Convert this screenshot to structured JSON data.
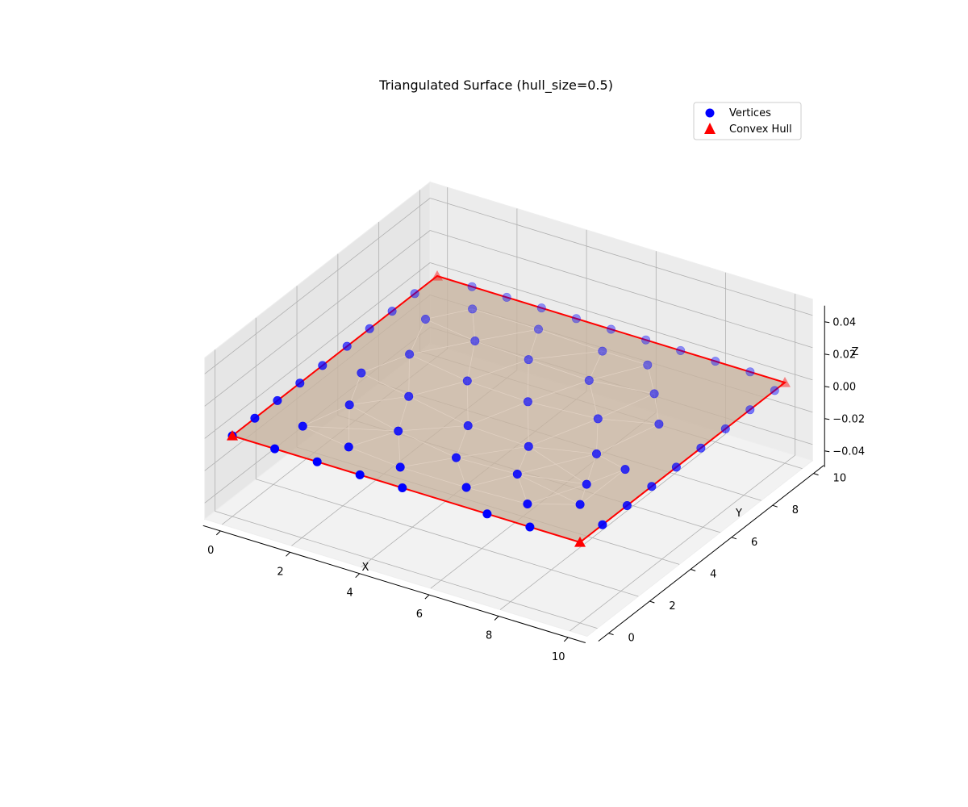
{
  "chart_data": {
    "type": "scatter",
    "projection": "3d",
    "title": "Triangulated Surface (hull_size=0.5)",
    "xlabel": "X",
    "ylabel": "Y",
    "zlabel": "Z",
    "xlim": [
      -0.5,
      10.5
    ],
    "ylim": [
      -0.5,
      10.5
    ],
    "zlim": [
      -0.05,
      0.05
    ],
    "xticks": [
      0,
      2,
      4,
      6,
      8,
      10
    ],
    "yticks": [
      0,
      2,
      4,
      6,
      8,
      10
    ],
    "zticks": [
      "−0.04",
      "−0.02",
      "0.00",
      "0.02",
      "0.04"
    ],
    "grid": true,
    "legend_position": "top-right",
    "colors": {
      "vertices": "#0000ff",
      "hull": "#ff0000",
      "surface": "#c8b4a0"
    },
    "series": [
      {
        "name": "Vertices",
        "marker": "circle",
        "points": [
          [
            0,
            0
          ],
          [
            1.22,
            0
          ],
          [
            2.44,
            0
          ],
          [
            3.67,
            0
          ],
          [
            4.89,
            0
          ],
          [
            7.33,
            0
          ],
          [
            8.56,
            0
          ],
          [
            10,
            1.1
          ],
          [
            10,
            2.3
          ],
          [
            10,
            3.5
          ],
          [
            10,
            4.7
          ],
          [
            10,
            5.9
          ],
          [
            10,
            7.1
          ],
          [
            10,
            8.3
          ],
          [
            10,
            9.5
          ],
          [
            9,
            10
          ],
          [
            8,
            10
          ],
          [
            7,
            10
          ],
          [
            6,
            10
          ],
          [
            5,
            10
          ],
          [
            4,
            10
          ],
          [
            3,
            10
          ],
          [
            2,
            10
          ],
          [
            1,
            10
          ],
          [
            0,
            8.9
          ],
          [
            0,
            7.8
          ],
          [
            0,
            6.7
          ],
          [
            0,
            5.6
          ],
          [
            0,
            4.4
          ],
          [
            0,
            3.3
          ],
          [
            0,
            2.2
          ],
          [
            0,
            1.1
          ],
          [
            1.2,
            1.4
          ],
          [
            2.7,
            1.1
          ],
          [
            4.3,
            0.9
          ],
          [
            6.2,
            0.9
          ],
          [
            7.9,
            1.0
          ],
          [
            9.0,
            1.7
          ],
          [
            1.6,
            3.0
          ],
          [
            3.3,
            2.5
          ],
          [
            5.2,
            2.1
          ],
          [
            6.9,
            2.2
          ],
          [
            8.6,
            2.7
          ],
          [
            1.0,
            4.6
          ],
          [
            2.6,
            4.2
          ],
          [
            4.6,
            3.7
          ],
          [
            6.4,
            3.6
          ],
          [
            8.0,
            4.2
          ],
          [
            9.0,
            3.9
          ],
          [
            1.5,
            6.1
          ],
          [
            3.4,
            5.7
          ],
          [
            5.2,
            5.6
          ],
          [
            7.1,
            5.8
          ],
          [
            8.5,
            6.4
          ],
          [
            0.9,
            7.9
          ],
          [
            2.5,
            7.6
          ],
          [
            4.1,
            7.5
          ],
          [
            5.9,
            7.4
          ],
          [
            7.6,
            7.7
          ],
          [
            1.6,
            9.0
          ],
          [
            3.5,
            9.0
          ],
          [
            5.4,
            8.9
          ],
          [
            6.7,
            8.9
          ]
        ]
      },
      {
        "name": "Convex Hull",
        "marker": "triangle",
        "points": [
          [
            0,
            0
          ],
          [
            10,
            0
          ],
          [
            10,
            10
          ],
          [
            0,
            10
          ]
        ]
      }
    ]
  }
}
